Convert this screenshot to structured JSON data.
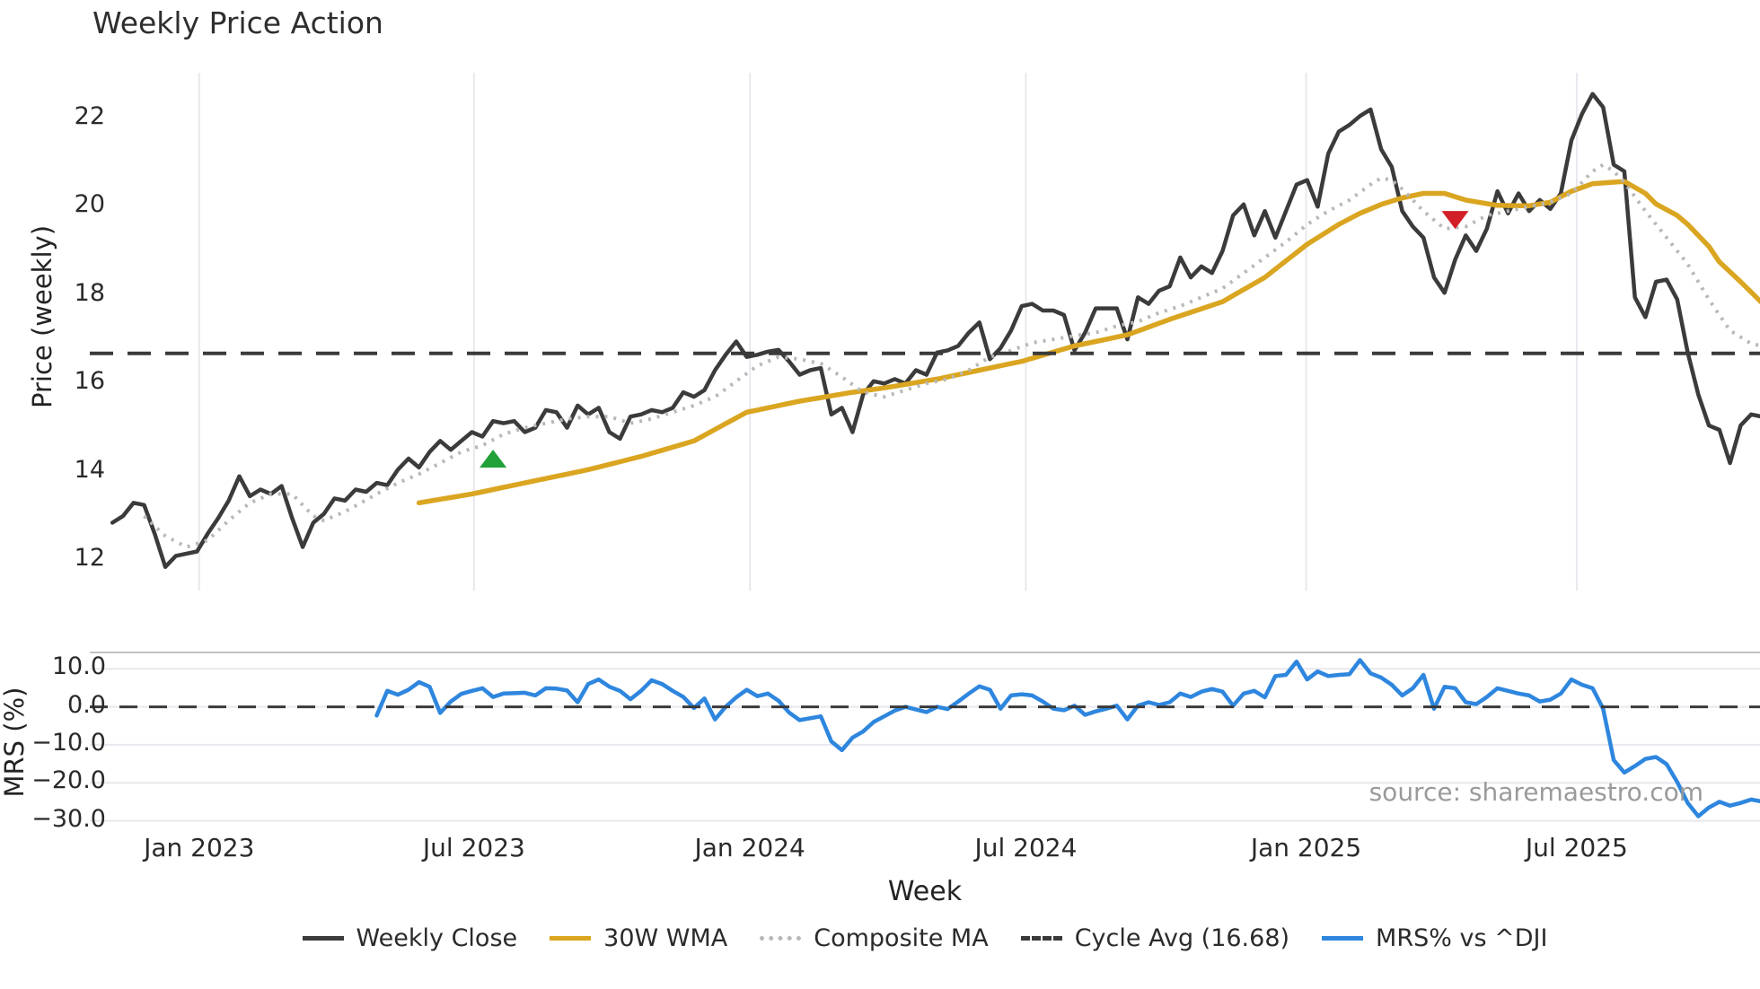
{
  "title": "Weekly Price Action",
  "source_note": "source: sharemaestro.com",
  "colors": {
    "close": "#3b3b3b",
    "wma": "#DAA520",
    "composite": "#b8b8b8",
    "cycle_avg": "#3a3a3a",
    "mrs": "#2E86DE",
    "buy_marker": "#22A038",
    "sell_marker": "#D21E26",
    "grid": "#e8e8ee",
    "panel_border": "#c2c2c2",
    "text": "#262626",
    "muted": "#9a9a9a"
  },
  "axes": {
    "price": {
      "label": "Price (weekly)",
      "ticks": [
        {
          "label": "22",
          "value": 22
        },
        {
          "label": "20",
          "value": 20
        },
        {
          "label": "18",
          "value": 18
        },
        {
          "label": "16",
          "value": 16
        },
        {
          "label": "14",
          "value": 14
        },
        {
          "label": "12",
          "value": 12
        }
      ],
      "ylim": [
        11.3,
        23.0
      ]
    },
    "mrs": {
      "label": "MRS (%)",
      "ticks": [
        {
          "label": "10.0",
          "value": 10
        },
        {
          "label": "0.0",
          "value": 0
        },
        {
          "label": "−10.0",
          "value": -10
        },
        {
          "label": "−20.0",
          "value": -20
        },
        {
          "label": "−30.0",
          "value": -30
        }
      ],
      "ylim": [
        -30.6,
        14.3
      ]
    },
    "x": {
      "label": "Week",
      "ticks": [
        {
          "label": "Jan 2023",
          "week": 8.2
        },
        {
          "label": "Jul 2023",
          "week": 34.2
        },
        {
          "label": "Jan 2024",
          "week": 60.3
        },
        {
          "label": "Jul 2024",
          "week": 86.4
        },
        {
          "label": "Jan 2025",
          "week": 112.9
        },
        {
          "label": "Jul 2025",
          "week": 138.5
        }
      ],
      "weeks_total": 156
    }
  },
  "legend": [
    {
      "label": "Weekly Close",
      "style": "solid",
      "color": "#3b3b3b"
    },
    {
      "label": "30W WMA",
      "style": "solid",
      "color": "#DAA520"
    },
    {
      "label": "Composite MA",
      "style": "dotted",
      "color": "#b8b8b8"
    },
    {
      "label": "Cycle Avg (16.68)",
      "style": "dashed",
      "color": "#3a3a3a"
    },
    {
      "label": "MRS% vs ^DJI",
      "style": "solid",
      "color": "#2E86DE"
    }
  ],
  "chart_data": {
    "type": "line",
    "x_unit": "week_index",
    "panels": [
      {
        "id": "price",
        "ylabel": "Price (weekly)",
        "ylim": [
          11.3,
          23.0
        ],
        "grid": "vertical-only",
        "series": [
          {
            "name": "Weekly Close",
            "style": "solid",
            "color": "#3b3b3b",
            "start_week": 0,
            "values": [
              12.85,
              13.0,
              13.3,
              13.25,
              12.6,
              11.85,
              12.1,
              12.15,
              12.2,
              12.6,
              12.95,
              13.35,
              13.9,
              13.45,
              13.6,
              13.5,
              13.68,
              12.95,
              12.3,
              12.85,
              13.05,
              13.4,
              13.35,
              13.6,
              13.55,
              13.75,
              13.7,
              14.05,
              14.3,
              14.1,
              14.45,
              14.7,
              14.5,
              14.7,
              14.9,
              14.8,
              15.15,
              15.1,
              15.15,
              14.9,
              15.0,
              15.4,
              15.35,
              15.0,
              15.5,
              15.3,
              15.45,
              14.9,
              14.75,
              15.25,
              15.3,
              15.4,
              15.35,
              15.45,
              15.8,
              15.7,
              15.85,
              16.3,
              16.65,
              16.95,
              16.6,
              16.65,
              16.72,
              16.76,
              16.5,
              16.2,
              16.3,
              16.35,
              15.3,
              15.45,
              14.9,
              15.75,
              16.05,
              16.0,
              16.1,
              16.0,
              16.3,
              16.2,
              16.7,
              16.75,
              16.85,
              17.15,
              17.38,
              16.55,
              16.8,
              17.2,
              17.75,
              17.8,
              17.65,
              17.65,
              17.55,
              16.75,
              17.15,
              17.7,
              17.7,
              17.7,
              17.0,
              17.95,
              17.8,
              18.1,
              18.2,
              18.85,
              18.4,
              18.65,
              18.5,
              19.0,
              19.8,
              20.05,
              19.35,
              19.9,
              19.3,
              19.9,
              20.5,
              20.6,
              20.0,
              21.2,
              21.7,
              21.85,
              22.05,
              22.2,
              21.3,
              20.9,
              19.9,
              19.55,
              19.3,
              18.4,
              18.05,
              18.8,
              19.35,
              19.0,
              19.5,
              20.35,
              19.85,
              20.3,
              19.9,
              20.15,
              19.95,
              20.3,
              21.5,
              22.1,
              22.55,
              22.25,
              20.95,
              20.8,
              17.95,
              17.5,
              18.3,
              18.35,
              17.9,
              16.7,
              15.75,
              15.05,
              14.95,
              14.2,
              15.05,
              15.3,
              15.25
            ]
          },
          {
            "name": "30W WMA",
            "style": "solid",
            "color": "#DAA520",
            "anchors": [
              [
                29,
                13.3
              ],
              [
                34,
                13.5
              ],
              [
                40,
                13.8
              ],
              [
                45,
                14.05
              ],
              [
                50,
                14.35
              ],
              [
                55,
                14.7
              ],
              [
                60,
                15.35
              ],
              [
                65,
                15.6
              ],
              [
                70,
                15.8
              ],
              [
                73,
                15.9
              ],
              [
                78,
                16.1
              ],
              [
                82,
                16.3
              ],
              [
                86,
                16.5
              ],
              [
                91,
                16.85
              ],
              [
                96,
                17.1
              ],
              [
                100,
                17.45
              ],
              [
                105,
                17.85
              ],
              [
                109,
                18.4
              ],
              [
                113,
                19.15
              ],
              [
                116,
                19.6
              ],
              [
                118,
                19.85
              ],
              [
                120,
                20.05
              ],
              [
                122,
                20.2
              ],
              [
                124,
                20.3
              ],
              [
                126,
                20.3
              ],
              [
                128,
                20.15
              ],
              [
                131,
                20.03
              ],
              [
                134,
                20.02
              ],
              [
                136,
                20.1
              ],
              [
                138,
                20.35
              ],
              [
                140,
                20.52
              ],
              [
                143,
                20.57
              ],
              [
                145,
                20.3
              ],
              [
                146,
                20.06
              ],
              [
                148,
                19.8
              ],
              [
                149,
                19.6
              ],
              [
                151,
                19.1
              ],
              [
                152,
                18.75
              ],
              [
                154,
                18.3
              ],
              [
                156,
                17.83
              ]
            ]
          },
          {
            "name": "Composite MA",
            "style": "dotted",
            "color": "#b8b8b8",
            "anchors": [
              [
                3,
                13.0
              ],
              [
                5,
                12.55
              ],
              [
                7,
                12.3
              ],
              [
                9,
                12.45
              ],
              [
                11,
                12.9
              ],
              [
                13,
                13.3
              ],
              [
                15,
                13.5
              ],
              [
                17,
                13.5
              ],
              [
                19,
                13.0
              ],
              [
                20,
                12.9
              ],
              [
                22,
                13.1
              ],
              [
                25,
                13.5
              ],
              [
                27,
                13.75
              ],
              [
                29,
                13.95
              ],
              [
                31,
                14.2
              ],
              [
                33,
                14.45
              ],
              [
                35,
                14.6
              ],
              [
                37,
                14.85
              ],
              [
                39,
                15.0
              ],
              [
                41,
                15.1
              ],
              [
                43,
                15.2
              ],
              [
                45,
                15.25
              ],
              [
                47,
                15.25
              ],
              [
                49,
                15.1
              ],
              [
                51,
                15.2
              ],
              [
                53,
                15.35
              ],
              [
                55,
                15.5
              ],
              [
                57,
                15.7
              ],
              [
                59,
                16.05
              ],
              [
                61,
                16.4
              ],
              [
                63,
                16.6
              ],
              [
                65,
                16.55
              ],
              [
                67,
                16.45
              ],
              [
                69,
                16.15
              ],
              [
                71,
                15.8
              ],
              [
                73,
                15.7
              ],
              [
                75,
                15.85
              ],
              [
                77,
                16.0
              ],
              [
                79,
                16.1
              ],
              [
                81,
                16.3
              ],
              [
                83,
                16.6
              ],
              [
                85,
                16.75
              ],
              [
                87,
                16.92
              ],
              [
                89,
                17.0
              ],
              [
                91,
                17.08
              ],
              [
                93,
                17.15
              ],
              [
                95,
                17.3
              ],
              [
                97,
                17.4
              ],
              [
                99,
                17.6
              ],
              [
                101,
                17.75
              ],
              [
                103,
                17.95
              ],
              [
                105,
                18.15
              ],
              [
                107,
                18.5
              ],
              [
                109,
                18.85
              ],
              [
                111,
                19.2
              ],
              [
                113,
                19.6
              ],
              [
                115,
                19.9
              ],
              [
                117,
                20.15
              ],
              [
                119,
                20.5
              ],
              [
                120,
                20.65
              ],
              [
                121,
                20.6
              ],
              [
                122,
                20.4
              ],
              [
                124,
                19.9
              ],
              [
                126,
                19.5
              ],
              [
                128,
                19.55
              ],
              [
                130,
                19.8
              ],
              [
                132,
                19.9
              ],
              [
                134,
                20.0
              ],
              [
                136,
                20.1
              ],
              [
                138,
                20.3
              ],
              [
                140,
                20.8
              ],
              [
                141,
                20.95
              ],
              [
                142,
                20.8
              ],
              [
                143,
                20.55
              ],
              [
                145,
                19.9
              ],
              [
                147,
                19.3
              ],
              [
                149,
                18.7
              ],
              [
                151,
                17.9
              ],
              [
                153,
                17.2
              ],
              [
                155,
                16.9
              ],
              [
                156,
                16.85
              ]
            ]
          },
          {
            "name": "Cycle Avg",
            "style": "dashed",
            "color": "#3a3a3a",
            "value": 16.68
          }
        ],
        "markers": [
          {
            "type": "triangle-up",
            "name": "buy-signal",
            "color": "#22A038",
            "week": 36,
            "price": 14.3
          },
          {
            "type": "triangle-down",
            "name": "sell-signal",
            "color": "#D21E26",
            "week": 127,
            "price": 19.7
          }
        ]
      },
      {
        "id": "mrs",
        "ylabel": "MRS (%)",
        "ylim": [
          -30.6,
          14.3
        ],
        "grid": "horizontal-only",
        "series": [
          {
            "name": "MRS% vs ^DJI",
            "style": "solid",
            "color": "#2E86DE",
            "start_week": 25,
            "values": [
              -2.3,
              4.2,
              3.2,
              4.5,
              6.5,
              5.3,
              -1.6,
              1.4,
              3.4,
              4.2,
              4.9,
              2.6,
              3.5,
              3.6,
              3.7,
              3.0,
              4.9,
              4.8,
              4.3,
              1.2,
              6.0,
              7.2,
              5.3,
              4.2,
              2.0,
              4.2,
              7.0,
              6.0,
              4.2,
              2.6,
              -0.3,
              2.2,
              -3.3,
              0.0,
              2.5,
              4.5,
              2.8,
              3.5,
              1.6,
              -1.5,
              -3.5,
              -3.0,
              -2.5,
              -9.1,
              -11.4,
              -8.1,
              -6.5,
              -4.0,
              -2.5,
              -1.0,
              0.0,
              -0.7,
              -1.4,
              0.0,
              -0.6,
              1.4,
              3.5,
              5.4,
              4.5,
              -0.5,
              3.0,
              3.3,
              3.0,
              1.4,
              -0.5,
              -0.9,
              0.3,
              -2.1,
              -1.2,
              -0.5,
              0.3,
              -3.3,
              0.3,
              1.2,
              0.5,
              1.2,
              3.5,
              2.6,
              4.0,
              4.7,
              4.0,
              0.3,
              3.5,
              4.2,
              2.5,
              8.1,
              8.4,
              11.9,
              7.2,
              9.3,
              8.1,
              8.4,
              8.6,
              12.3,
              8.8,
              7.7,
              5.8,
              3.0,
              4.9,
              8.4,
              -0.5,
              5.3,
              4.9,
              1.2,
              0.7,
              2.6,
              4.9,
              4.2,
              3.5,
              3.0,
              1.4,
              1.9,
              3.5,
              7.2,
              5.8,
              4.9,
              -0.5,
              -14.0,
              -17.3,
              -15.6,
              -13.7,
              -13.2,
              -15.1,
              -19.8,
              -25.3,
              -28.8,
              -26.5,
              -25.0,
              -26.0,
              -25.3,
              -24.4,
              -24.9
            ]
          },
          {
            "name": "Zero line",
            "style": "dashed",
            "color": "#3a3a3a",
            "value": 0
          }
        ]
      }
    ]
  }
}
